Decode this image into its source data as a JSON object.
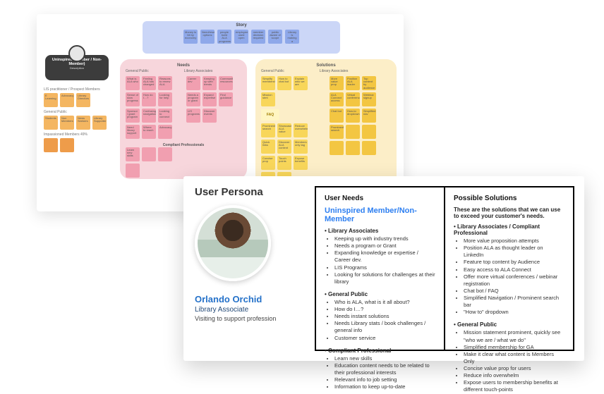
{
  "colors": {
    "story_bg": "#cbd6f7",
    "needs_bg": "#f7d6dc",
    "solutions_bg": "#fceec8",
    "sticky_blue": "#8ea8ea",
    "sticky_pink": "#f19fb0",
    "sticky_orange": "#f4b661",
    "sticky_darkorange": "#ee9c4a",
    "sticky_yellow": "#f8d65a",
    "sticky_gold": "#f3c642",
    "chip_bg": "#3c3c3c",
    "blue_link": "#2d7ff1",
    "name_blue": "#2471c9"
  },
  "board": {
    "story": {
      "label": "Story",
      "items": [
        "Money is hit by economy",
        "Need/research options",
        "people build ALA programs",
        "employee used open",
        "member decision required",
        "public aware of scope",
        "Library is making a change"
      ]
    },
    "persona_chip": {
      "title": "Uninspired (Member / Non-Member)",
      "desc": "Description"
    },
    "legend": {
      "members_label": "LIS practitioner / Prospect Members",
      "members": [
        "E Learning",
        "Advocacy",
        "Library Directors"
      ],
      "public_label": "General Public",
      "public": [
        "Students",
        "Non Members",
        "News Seekers",
        "Library Supporter"
      ],
      "impassioned_label": "Impassioned Members 49%",
      "impassioned": [
        "",
        ""
      ]
    },
    "needs": {
      "label": "Needs",
      "sub_left": "General Public",
      "sub_right": "Library Associates",
      "gp": [
        "What is ALA who",
        "Feeling ALA has changed",
        "Reasons to renew ALA",
        "Sense of slow progress",
        "How do I…?",
        "Looking for help",
        "Sponsor / grant program",
        "Confusing navigation",
        "Looking to connect",
        "Need library support",
        "Where to reach",
        "Advocacy"
      ],
      "la": [
        "Career dev",
        "Keeping up with trends",
        "Community resources",
        "Needs a program or grant",
        "Expand expertise",
        "Find guidance",
        "LIS programs",
        "Discover events"
      ],
      "compliant_label": "Compliant Professionals",
      "compliant": [
        "Learn new skills",
        "",
        "",
        ""
      ]
    },
    "solutions": {
      "label": "Solutions",
      "sub_left": "General Public",
      "sub_right": "Library Associates",
      "faq": "FAQ",
      "gp": [
        "Simplify membership",
        "How to chat bot",
        "Explain who we are",
        "Mission stmt",
        "Prominent search",
        "Showcase ALA value",
        "Reduce overwhelm",
        "Quick links",
        "Discover ALA content",
        "Members only tag",
        "Concise prop",
        "Touch points",
        "Expose benefits",
        "",
        ""
      ],
      "la": [
        "More value prop",
        "Position ALA leader",
        "Top content by audience",
        "ALA Connect access",
        "Virtual conferences",
        "Webinar signup",
        "Chat bot",
        "How-to dropdown",
        "Simplified nav",
        "Prominent search",
        "",
        "",
        "",
        "",
        ""
      ]
    }
  },
  "persona": {
    "header": "User Persona",
    "name": "Orlando Orchid",
    "role": "Library Associate",
    "goal": "Visiting to support profession",
    "needs": {
      "title": "User Needs",
      "subtitle": "Uninspired Member/Non-Member",
      "groups": [
        {
          "label": "Library Associates",
          "items": [
            "Keeping up with industry trends",
            "Needs a program or Grant",
            "Expanding knowledge or expertise / Career dev.",
            "LIS Programs",
            "Looking for solutions for challenges at their library"
          ]
        },
        {
          "label": "General Public",
          "items": [
            "Who is ALA, what is it all about?",
            "How do I…?",
            "Needs instant solutions",
            "Needs Library stats / book challenges / general info",
            "Customer service"
          ]
        },
        {
          "label": "Compliant Professional",
          "items": [
            "Learn new skills",
            "Education content needs to be related to their professional interests",
            "Relevant info to job setting",
            "Information to keep up-to-date"
          ]
        }
      ]
    },
    "solutions": {
      "title": "Possible Solutions",
      "lead": "These are the solutions that we can use to exceed your customer's needs.",
      "groups": [
        {
          "label": "Library Associates / Compliant Professional",
          "items": [
            "More value proposition attempts",
            "Position ALA as thought leader on LinkedIn",
            "Feature top content by Audience",
            "Easy access to ALA Connect",
            "Offer more virtual conferences / webinar registration",
            "Chat bot / FAQ",
            "Simplified Navigation / Prominent search bar",
            "\"How to\" dropdown"
          ]
        },
        {
          "label": "General Public",
          "items": [
            "Mission statement prominent, quickly see \"who we are / what we do\"",
            "Simplified membership for GA",
            "Make it clear what content is Members Only",
            "Concise value prop for users",
            "Reduce info overwhelm",
            "Expose users to membership benefits at different touch-points"
          ]
        }
      ]
    }
  }
}
